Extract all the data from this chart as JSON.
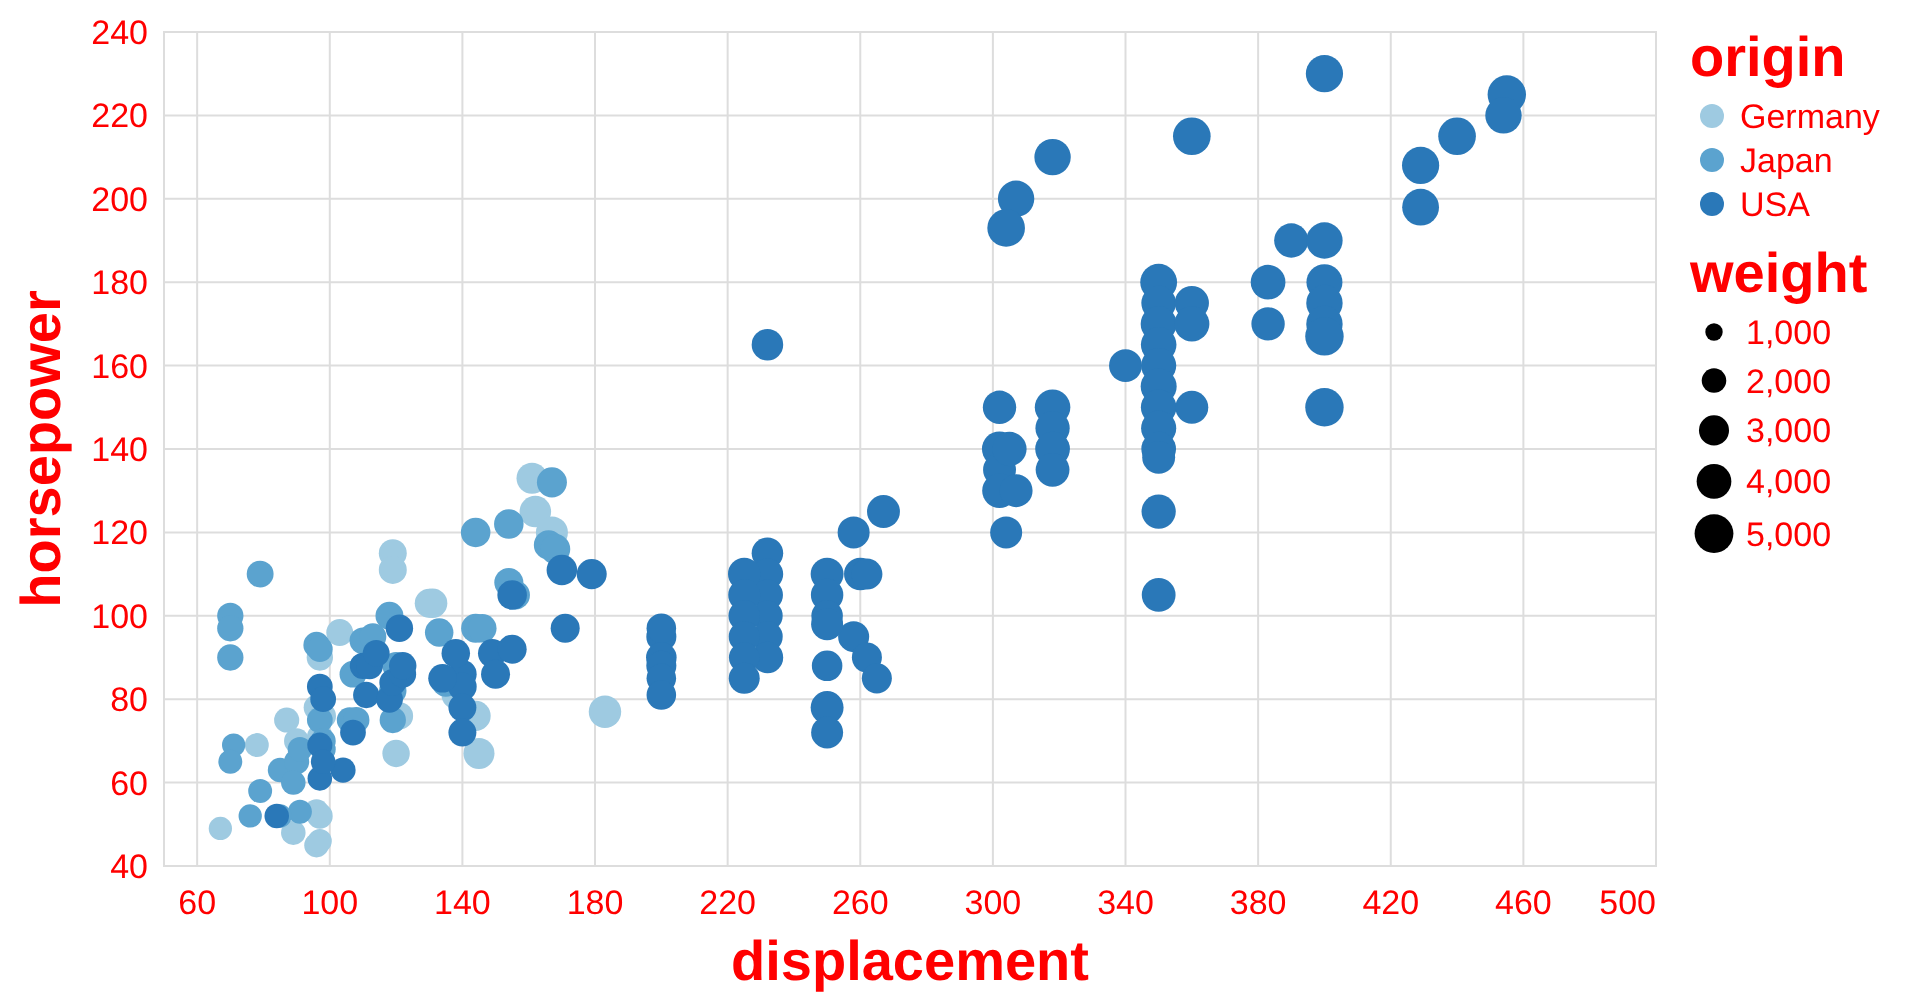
{
  "chart_data": {
    "type": "bubble",
    "xlabel": "displacement",
    "ylabel": "horsepower",
    "legend_title": "origin",
    "annotations": [
      "weight"
    ],
    "xlim": [
      50,
      500
    ],
    "xticks": [
      60,
      100,
      140,
      180,
      220,
      260,
      300,
      340,
      380,
      420,
      460,
      500
    ],
    "ylim": [
      40,
      240
    ],
    "yticks": [
      40,
      60,
      80,
      100,
      120,
      140,
      160,
      180,
      200,
      220,
      240
    ],
    "grid": true,
    "legend": "right",
    "marker": "circle",
    "size_legend": [
      {
        "value": 1000,
        "label": "1,000"
      },
      {
        "value": 2000,
        "label": "2,000"
      },
      {
        "value": 3000,
        "label": "3,000"
      },
      {
        "value": 4000,
        "label": "4,000"
      },
      {
        "value": 5000,
        "label": "5,000"
      }
    ],
    "series": [
      {
        "name": "Germany",
        "color": "#9ecae1",
        "x": [
          119,
          119,
          130,
          67,
          89,
          96,
          96,
          78,
          87,
          96,
          97,
          103,
          120,
          144,
          145,
          138,
          161,
          162,
          167,
          183,
          97,
          90,
          121,
          98,
          97,
          131,
          97
        ],
        "values": [
          115,
          111,
          103,
          49,
          48,
          45,
          53,
          69,
          75,
          78,
          90,
          96,
          67,
          76,
          67,
          81,
          133,
          125,
          120,
          77,
          52,
          70,
          76,
          76,
          71,
          103,
          46
        ],
        "sizes": [
          2600,
          2600,
          2800,
          1800,
          2000,
          2000,
          2100,
          1900,
          2100,
          2200,
          2300,
          2400,
          2500,
          3000,
          3200,
          2700,
          3200,
          3300,
          3400,
          3500,
          2200,
          2100,
          2500,
          2200,
          2200,
          2900,
          1900
        ]
      },
      {
        "name": "Japan",
        "color": "#5ba3cf",
        "x": [
          70,
          70,
          70,
          79,
          71,
          70,
          76,
          79,
          85,
          90,
          96,
          110,
          118,
          106,
          119,
          144,
          154,
          154,
          166,
          133,
          144,
          167,
          91,
          97,
          108,
          107,
          119,
          89,
          98,
          120,
          135,
          156,
          146,
          97,
          113,
          91,
          98,
          85,
          168
        ],
        "values": [
          100,
          97,
          90,
          110,
          69,
          65,
          52,
          58,
          63,
          65,
          93,
          94,
          100,
          75,
          75,
          120,
          122,
          108,
          117,
          96,
          97,
          132,
          68,
          75,
          75,
          86,
          82,
          60,
          68,
          88,
          84,
          105,
          97,
          92,
          95,
          53,
          70,
          52,
          116
        ],
        "sizes": [
          2300,
          2300,
          2300,
          2400,
          1800,
          1900,
          1800,
          1900,
          2000,
          2100,
          2300,
          2400,
          2600,
          2200,
          2300,
          2900,
          2900,
          2800,
          2900,
          2700,
          2800,
          3000,
          2000,
          2200,
          2300,
          2400,
          2500,
          2000,
          2100,
          2500,
          2700,
          2800,
          2700,
          2200,
          2400,
          1900,
          2100,
          1800,
          3000
        ]
      },
      {
        "name": "USA",
        "color": "#2a78b8",
        "x": [
          400,
          455,
          454,
          440,
          429,
          429,
          360,
          318,
          307,
          304,
          390,
          400,
          383,
          400,
          400,
          400,
          400,
          383,
          400,
          350,
          350,
          350,
          350,
          350,
          350,
          350,
          350,
          350,
          350,
          350,
          350,
          340,
          360,
          360,
          360,
          318,
          318,
          318,
          318,
          302,
          302,
          302,
          302,
          304,
          307,
          305,
          232,
          260,
          262,
          267,
          258,
          258,
          262,
          265,
          250,
          250,
          250,
          250,
          250,
          250,
          250,
          232,
          232,
          232,
          232,
          232,
          232,
          225,
          225,
          225,
          225,
          225,
          225,
          200,
          200,
          200,
          200,
          200,
          200,
          170,
          179,
          155,
          171,
          149,
          155,
          140,
          140,
          140,
          140,
          97,
          97,
          97,
          104,
          84,
          110,
          111,
          118,
          119,
          121,
          134,
          138,
          150,
          98,
          98,
          122,
          122,
          112,
          107,
          114
        ],
        "values": [
          230,
          225,
          220,
          215,
          208,
          198,
          215,
          210,
          200,
          193,
          190,
          190,
          180,
          180,
          175,
          170,
          167,
          170,
          150,
          180,
          175,
          170,
          165,
          160,
          155,
          150,
          145,
          140,
          138,
          125,
          105,
          160,
          175,
          170,
          150,
          150,
          145,
          140,
          135,
          150,
          140,
          135,
          130,
          120,
          130,
          140,
          165,
          110,
          110,
          125,
          120,
          95,
          90,
          85,
          110,
          105,
          100,
          98,
          88,
          78,
          72,
          115,
          110,
          105,
          100,
          95,
          90,
          110,
          105,
          100,
          95,
          90,
          85,
          95,
          97,
          90,
          88,
          85,
          81,
          111,
          110,
          105,
          97,
          91,
          92,
          86,
          83,
          78,
          72,
          83,
          69,
          61,
          63,
          52,
          88,
          81,
          80,
          84,
          97,
          85,
          91,
          86,
          65,
          80,
          86,
          88,
          88,
          72,
          91
        ],
        "sizes": [
          4600,
          4900,
          4400,
          4700,
          4600,
          4500,
          4700,
          4400,
          4400,
          4700,
          3900,
          4400,
          4000,
          4300,
          4400,
          4400,
          4900,
          3700,
          4900,
          4500,
          4000,
          4300,
          4200,
          4100,
          4300,
          4200,
          4100,
          4000,
          3600,
          3900,
          3800,
          3600,
          3900,
          4100,
          3600,
          4200,
          3900,
          4000,
          3800,
          3700,
          4100,
          3600,
          4000,
          3400,
          3600,
          3900,
          3300,
          3500,
          3200,
          3600,
          3400,
          3200,
          3000,
          3000,
          3600,
          3500,
          3300,
          3400,
          3100,
          3600,
          3400,
          3300,
          3300,
          3200,
          3100,
          3100,
          3300,
          3500,
          3400,
          3300,
          3200,
          3100,
          3200,
          3000,
          2900,
          3100,
          3000,
          2900,
          2900,
          3100,
          3000,
          2900,
          2800,
          2700,
          2800,
          2700,
          2700,
          2600,
          2600,
          2200,
          2100,
          2000,
          2100,
          2000,
          2300,
          2300,
          2400,
          2400,
          2500,
          2700,
          2700,
          2800,
          2000,
          2200,
          2400,
          2500,
          2400,
          2200,
          2400
        ]
      }
    ]
  }
}
